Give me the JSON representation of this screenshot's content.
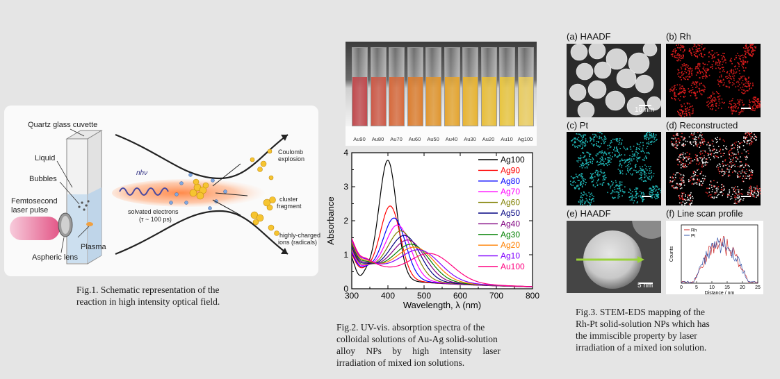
{
  "fig1": {
    "labels": {
      "cuvette": "Quartz glass cuvette",
      "liquid": "Liquid",
      "bubbles": "Bubbles",
      "femto1": "Femtosecond",
      "femto2": "laser pulse",
      "plasma": "Plasma",
      "lens": "Aspheric lens",
      "nhv": "nhν",
      "solv1": "solvated electrons",
      "solv2": "(τ ~ 100 ps)",
      "coulomb1": "Coulomb",
      "coulomb2": "explosion",
      "cluster1": "cluster",
      "cluster2": "fragment",
      "ions1": "highly-charged",
      "ions2": "ions (radicals)"
    },
    "caption_lines": [
      "Fig.1. Schematic representation of the",
      "reaction in high intensity optical field."
    ]
  },
  "fig2": {
    "vial_labels": [
      "Au90",
      "Au80",
      "Au70",
      "Au60",
      "Au50",
      "Au40",
      "Au30",
      "Au20",
      "Au10",
      "Ag100"
    ],
    "vial_colors": [
      "#c04a4e",
      "#cc5a48",
      "#d66a3c",
      "#db7e30",
      "#e09630",
      "#e4a530",
      "#e7b332",
      "#e8be3a",
      "#e8c540",
      "#e9cc60"
    ],
    "caption_lines": [
      "Fig.2. UV-vis. absorption spectra of the",
      "colloidal solutions of Au-Ag solid-solution",
      "alloy NPs by high intensity laser",
      "irradiation of mixed ion solutions."
    ]
  },
  "chart_data": {
    "type": "line",
    "xlabel": "Wavelength, λ (nm)",
    "ylabel": "Absorbance",
    "xlim": [
      300,
      800
    ],
    "ylim": [
      0,
      4
    ],
    "xticks": [
      "300",
      "400",
      "500",
      "600",
      "700",
      "800"
    ],
    "yticks": [
      "0",
      "1",
      "2",
      "3",
      "4"
    ],
    "legend_position": "top-right",
    "series": [
      {
        "name": "Ag100",
        "color": "#000000",
        "peak": 400,
        "height": 3.45
      },
      {
        "name": "Ag90",
        "color": "#ff0000",
        "peak": 407,
        "height": 2.1
      },
      {
        "name": "Ag80",
        "color": "#0000ff",
        "peak": 418,
        "height": 1.75
      },
      {
        "name": "Ag70",
        "color": "#ff00ff",
        "peak": 428,
        "height": 1.55
      },
      {
        "name": "Ag60",
        "color": "#808000",
        "peak": 438,
        "height": 1.38
      },
      {
        "name": "Ag50",
        "color": "#000080",
        "peak": 448,
        "height": 1.25
      },
      {
        "name": "Ag40",
        "color": "#800080",
        "peak": 458,
        "height": 1.12
      },
      {
        "name": "Ag30",
        "color": "#008000",
        "peak": 468,
        "height": 1.0
      },
      {
        "name": "Ag20",
        "color": "#ff8000",
        "peak": 478,
        "height": 0.92
      },
      {
        "name": "Ag10",
        "color": "#8000ff",
        "peak": 490,
        "height": 0.85
      },
      {
        "name": "Au100",
        "color": "#ff0080",
        "peak": 520,
        "height": 0.78
      }
    ]
  },
  "fig3": {
    "panels": [
      {
        "label": "(a) HAADF",
        "scale": "10 nm"
      },
      {
        "label": "(b) Rh",
        "scale": ""
      },
      {
        "label": "(c) Pt",
        "scale": ""
      },
      {
        "label": "(d) Reconstructed",
        "scale": ""
      },
      {
        "label": "(e) HAADF",
        "scale": "5 nm"
      },
      {
        "label": "(f) Line scan profile",
        "scale": ""
      }
    ],
    "line_scan": {
      "xlabel": "Distance / nm",
      "ylabel": "Counts",
      "xticks": [
        "0",
        "5",
        "10",
        "15",
        "20",
        "25"
      ],
      "legend": [
        "Rh",
        "Pt"
      ],
      "colors": [
        "#cc2222",
        "#3355aa"
      ]
    },
    "caption_lines": [
      "Fig.3. STEM-EDS mapping of the",
      "Rh-Pt solid-solution NPs which has",
      "the immiscible property by laser",
      "irradiation of a mixed ion solution."
    ]
  }
}
